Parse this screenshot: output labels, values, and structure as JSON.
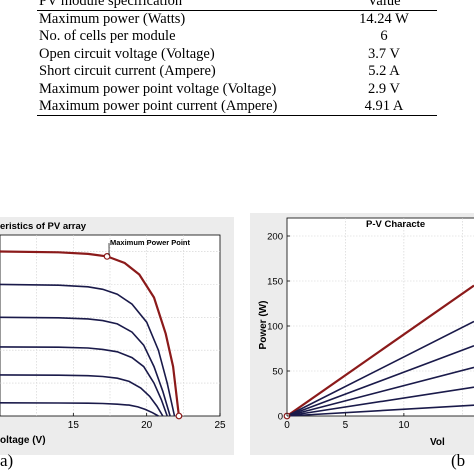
{
  "table": {
    "header": {
      "param": "PV module specification",
      "value": "Value"
    },
    "rows": [
      {
        "param": "Maximum power (Watts)",
        "value": "14.24 W"
      },
      {
        "param": "No. of cells per module",
        "value": "6"
      },
      {
        "param": "Open circuit voltage (Voltage)",
        "value": "3.7 V"
      },
      {
        "param": "Short circuit current (Ampere)",
        "value": "5.2 A"
      },
      {
        "param": "Maximum power point voltage (Voltage)",
        "value": "2.9 V"
      },
      {
        "param": "Maximum power point current (Ampere)",
        "value": "4.91 A"
      }
    ]
  },
  "chart_data": [
    {
      "type": "line",
      "title": "eristics of PV array",
      "xlabel": "oltage (V)",
      "ylabel": "",
      "xlim": [
        10,
        25
      ],
      "ylim": [
        0,
        1.1
      ],
      "xticks": [
        15,
        20,
        25
      ],
      "grid": true,
      "annotation": "Maximum Power Point",
      "series": [
        {
          "values": [
            [
              10,
              1.0
            ],
            [
              14,
              0.995
            ],
            [
              16,
              0.985
            ],
            [
              17.3,
              0.97
            ],
            [
              18.5,
              0.93
            ],
            [
              19.5,
              0.86
            ],
            [
              20.5,
              0.72
            ],
            [
              21.3,
              0.5
            ],
            [
              21.8,
              0.3
            ],
            [
              22.2,
              0.0
            ]
          ]
        },
        {
          "values": [
            [
              10,
              0.8
            ],
            [
              14,
              0.795
            ],
            [
              16,
              0.785
            ],
            [
              17,
              0.77
            ],
            [
              18,
              0.74
            ],
            [
              19,
              0.68
            ],
            [
              20,
              0.57
            ],
            [
              20.8,
              0.4
            ],
            [
              21.4,
              0.2
            ],
            [
              21.9,
              0.0
            ]
          ]
        },
        {
          "values": [
            [
              10,
              0.6
            ],
            [
              14,
              0.597
            ],
            [
              16,
              0.59
            ],
            [
              17,
              0.58
            ],
            [
              18,
              0.56
            ],
            [
              19,
              0.51
            ],
            [
              19.8,
              0.43
            ],
            [
              20.5,
              0.3
            ],
            [
              21.1,
              0.15
            ],
            [
              21.6,
              0.0
            ]
          ]
        },
        {
          "values": [
            [
              10,
              0.42
            ],
            [
              14,
              0.418
            ],
            [
              16,
              0.413
            ],
            [
              17,
              0.405
            ],
            [
              18,
              0.39
            ],
            [
              19,
              0.355
            ],
            [
              19.8,
              0.3
            ],
            [
              20.5,
              0.2
            ],
            [
              21.0,
              0.1
            ],
            [
              21.4,
              0.0
            ]
          ]
        },
        {
          "values": [
            [
              10,
              0.25
            ],
            [
              14,
              0.248
            ],
            [
              16,
              0.245
            ],
            [
              17,
              0.24
            ],
            [
              18,
              0.23
            ],
            [
              18.8,
              0.21
            ],
            [
              19.6,
              0.17
            ],
            [
              20.2,
              0.12
            ],
            [
              20.7,
              0.06
            ],
            [
              21.1,
              0.0
            ]
          ]
        },
        {
          "values": [
            [
              10,
              0.08
            ],
            [
              14,
              0.079
            ],
            [
              16,
              0.078
            ],
            [
              17,
              0.076
            ],
            [
              18,
              0.072
            ],
            [
              18.8,
              0.066
            ],
            [
              19.4,
              0.055
            ],
            [
              19.9,
              0.04
            ],
            [
              20.4,
              0.02
            ],
            [
              20.8,
              0.0
            ]
          ]
        }
      ],
      "points": [
        [
          17.3,
          0.97
        ],
        [
          22.2,
          0.0
        ]
      ],
      "colors": {
        "curves": "#1a1a4a",
        "highlight": "#8b1a1a"
      }
    },
    {
      "type": "line",
      "title": "P-V Characte",
      "xlabel": "Vol",
      "ylabel": "Power (W)",
      "xlim": [
        0,
        16
      ],
      "ylim": [
        0,
        220
      ],
      "yticks": [
        0,
        50,
        100,
        150,
        200
      ],
      "xticks": [
        0,
        5,
        10
      ],
      "grid": true,
      "series": [
        {
          "values": [
            [
              0,
              0
            ],
            [
              16,
              145
            ]
          ]
        },
        {
          "values": [
            [
              0,
              0
            ],
            [
              16,
              105
            ]
          ]
        },
        {
          "values": [
            [
              0,
              0
            ],
            [
              16,
              78
            ]
          ]
        },
        {
          "values": [
            [
              0,
              0
            ],
            [
              16,
              54
            ]
          ]
        },
        {
          "values": [
            [
              0,
              0
            ],
            [
              16,
              32
            ]
          ]
        },
        {
          "values": [
            [
              0,
              0
            ],
            [
              16,
              12
            ]
          ]
        }
      ],
      "colors": {
        "curves": "#1a1a4a",
        "highlight": "#8b1a1a"
      }
    }
  ],
  "labels": {
    "left": "a)",
    "right": "(b"
  }
}
